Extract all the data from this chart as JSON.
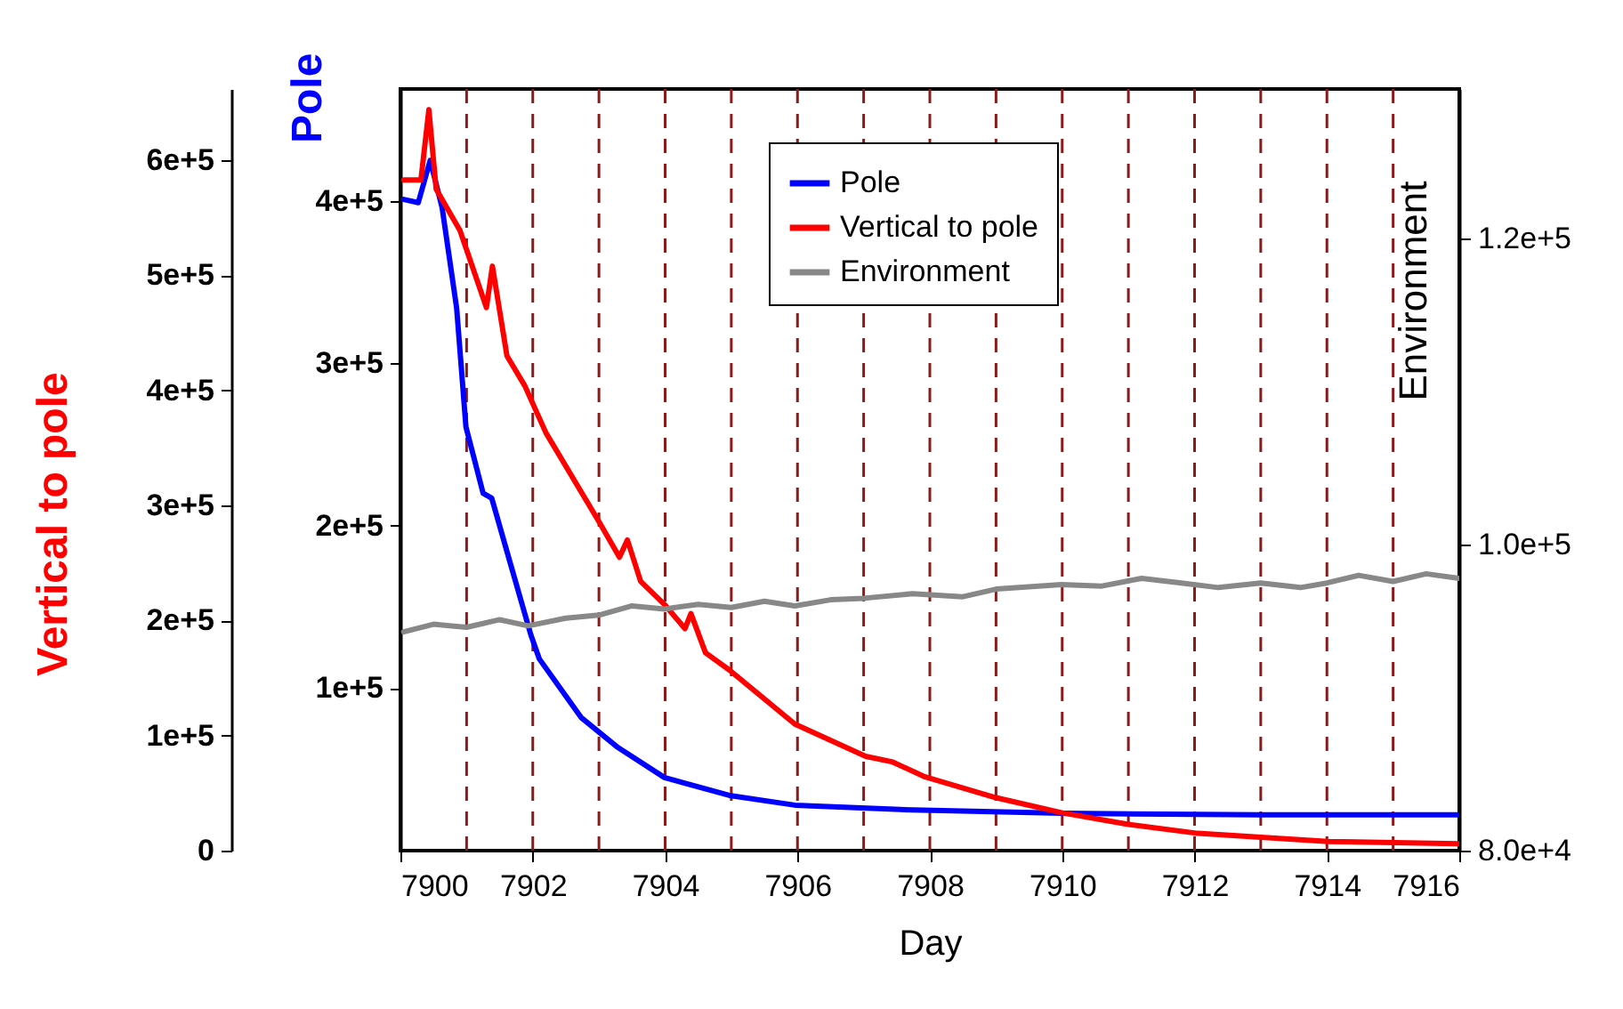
{
  "chart_data": {
    "type": "line",
    "xlabel": "Day",
    "ylabel": "Pole",
    "y2label": "Environment",
    "y3label": "Vertical to pole",
    "xlim": [
      7900,
      7916
    ],
    "xticks": [
      7900,
      {
        "value": 7901,
        "label": null
      },
      7902,
      {
        "value": 7903,
        "label": null
      },
      7904,
      {
        "value": 7905,
        "label": null
      },
      7906,
      {
        "value": 7907,
        "label": null
      },
      7908,
      {
        "value": 7909,
        "label": null
      },
      7910,
      {
        "value": 7911,
        "label": null
      },
      7912,
      {
        "value": 7913,
        "label": null
      },
      7914,
      {
        "value": 7915,
        "label": null
      },
      7916
    ],
    "ylim": [
      0,
      469000
    ],
    "yticks": [
      {
        "value": 100000,
        "label": "1e+5"
      },
      {
        "value": 200000,
        "label": "2e+5"
      },
      {
        "value": 300000,
        "label": "3e+5"
      },
      {
        "value": 400000,
        "label": "4e+5"
      }
    ],
    "y2lim": [
      80000,
      129800
    ],
    "y2ticks": [
      {
        "value": 80000,
        "label": "8.0e+4"
      },
      {
        "value": 100000,
        "label": "1.0e+5"
      },
      {
        "value": 120000,
        "label": "1.2e+5"
      }
    ],
    "y3lim": [
      0,
      662000
    ],
    "y3ticks": [
      0,
      {
        "value": 100000,
        "label": "1e+5"
      },
      {
        "value": 200000,
        "label": "2e+5"
      },
      {
        "value": 300000,
        "label": "3e+5"
      },
      {
        "value": 400000,
        "label": "4e+5"
      },
      {
        "value": 500000,
        "label": "5e+5"
      },
      {
        "value": 600000,
        "label": "6e+5"
      }
    ],
    "legend": "top right",
    "grid": false,
    "line_style": "solid",
    "marker": "none",
    "ref_lines": [
      {
        "axis": "x",
        "value": 7901,
        "color": "#8b1a1a",
        "line_style": "dashed"
      },
      {
        "axis": "x",
        "value": 7902,
        "color": "#8b1a1a",
        "line_style": "dashed"
      },
      {
        "axis": "x",
        "value": 7903,
        "color": "#8b1a1a",
        "line_style": "dashed"
      },
      {
        "axis": "x",
        "value": 7904,
        "color": "#8b1a1a",
        "line_style": "dashed"
      },
      {
        "axis": "x",
        "value": 7905,
        "color": "#8b1a1a",
        "line_style": "dashed"
      },
      {
        "axis": "x",
        "value": 7906,
        "color": "#8b1a1a",
        "line_style": "dashed"
      },
      {
        "axis": "x",
        "value": 7907,
        "color": "#8b1a1a",
        "line_style": "dashed"
      },
      {
        "axis": "x",
        "value": 7908,
        "color": "#8b1a1a",
        "line_style": "dashed"
      },
      {
        "axis": "x",
        "value": 7909,
        "color": "#8b1a1a",
        "line_style": "dashed"
      },
      {
        "axis": "x",
        "value": 7910,
        "color": "#8b1a1a",
        "line_style": "dashed"
      },
      {
        "axis": "x",
        "value": 7911,
        "color": "#8b1a1a",
        "line_style": "dashed"
      },
      {
        "axis": "x",
        "value": 7912,
        "color": "#8b1a1a",
        "line_style": "dashed"
      },
      {
        "axis": "x",
        "value": 7913,
        "color": "#8b1a1a",
        "line_style": "dashed"
      },
      {
        "axis": "x",
        "value": 7914,
        "color": "#8b1a1a",
        "line_style": "dashed"
      },
      {
        "axis": "x",
        "value": 7915,
        "color": "#8b1a1a",
        "line_style": "dashed"
      }
    ],
    "series": [
      {
        "name": "Pole",
        "color": "#0000ff",
        "axis": "y",
        "x": [
          7900.05,
          7900.27,
          7900.45,
          7900.63,
          7900.85,
          7900.99,
          7901.25,
          7901.38,
          7901.66,
          7901.97,
          7902.1,
          7902.73,
          7903.27,
          7903.99,
          7904.97,
          7905.96,
          7907.74,
          7910,
          7913,
          7916
        ],
        "values": [
          401000,
          399000,
          425000,
          396000,
          334000,
          261000,
          220000,
          217000,
          177000,
          133000,
          118000,
          82000,
          64000,
          45000,
          34000,
          28000,
          25000,
          23000,
          22000,
          22000
        ]
      },
      {
        "name": "Vertical to pole",
        "color": "#ff0000",
        "axis": "y3",
        "x": [
          7900.05,
          7900.31,
          7900.43,
          7900.54,
          7900.9,
          7901.3,
          7901.39,
          7901.61,
          7901.88,
          7902.2,
          7903.0,
          7903.31,
          7903.43,
          7903.63,
          7903.99,
          7904.3,
          7904.39,
          7904.61,
          7904.97,
          7905.96,
          7907.03,
          7907.44,
          7907.93,
          7909.0,
          7909.99,
          7910.98,
          7912.05,
          7914.02,
          7916
        ],
        "values": [
          583000,
          583000,
          644000,
          575000,
          539000,
          472000,
          508000,
          430000,
          404000,
          363000,
          286000,
          255000,
          270000,
          234000,
          214000,
          193000,
          206000,
          172000,
          157000,
          110000,
          82000,
          77000,
          64000,
          46000,
          33000,
          23000,
          15000,
          8000,
          6000
        ]
      },
      {
        "name": "Environment",
        "color": "#888888",
        "axis": "y2",
        "x": [
          7900.05,
          7900.5,
          7901,
          7901.5,
          7901.93,
          7902.5,
          7903,
          7903.5,
          7903.99,
          7904.5,
          7905,
          7905.5,
          7905.96,
          7906.5,
          7907,
          7907.74,
          7908.5,
          7909,
          7909.99,
          7910.6,
          7911.2,
          7911.8,
          7912.36,
          7913,
          7913.6,
          7914,
          7914.48,
          7915,
          7915.5,
          7916
        ],
        "values": [
          94300,
          94800,
          94600,
          95100,
          94700,
          95200,
          95400,
          96000,
          95800,
          96100,
          95900,
          96300,
          96000,
          96400,
          96500,
          96800,
          96600,
          97100,
          97400,
          97300,
          97800,
          97500,
          97200,
          97500,
          97200,
          97500,
          98000,
          97600,
          98100,
          97800
        ]
      }
    ]
  }
}
